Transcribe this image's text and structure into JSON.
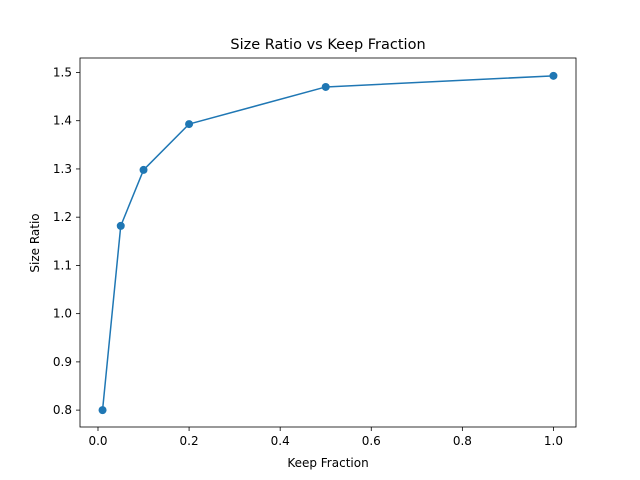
{
  "chart_data": {
    "type": "line",
    "title": "Size Ratio vs Keep Fraction",
    "xlabel": "Keep Fraction",
    "ylabel": "Size Ratio",
    "xlim": [
      -0.0395,
      1.0495
    ],
    "ylim": [
      0.765,
      1.53
    ],
    "xticks": [
      0.0,
      0.2,
      0.4,
      0.6,
      0.8,
      1.0
    ],
    "xtick_labels": [
      "0.0",
      "0.2",
      "0.4",
      "0.6",
      "0.8",
      "1.0"
    ],
    "yticks": [
      0.8,
      0.9,
      1.0,
      1.1,
      1.2,
      1.3,
      1.4,
      1.5
    ],
    "ytick_labels": [
      "0.8",
      "0.9",
      "1.0",
      "1.1",
      "1.2",
      "1.3",
      "1.4",
      "1.5"
    ],
    "grid": false,
    "series": [
      {
        "x": [
          0.01,
          0.05,
          0.1,
          0.2,
          0.5,
          1.0
        ],
        "y": [
          0.8,
          1.182,
          1.298,
          1.393,
          1.47,
          1.493
        ],
        "color": "#1f77b4",
        "marker": "circle"
      }
    ]
  }
}
